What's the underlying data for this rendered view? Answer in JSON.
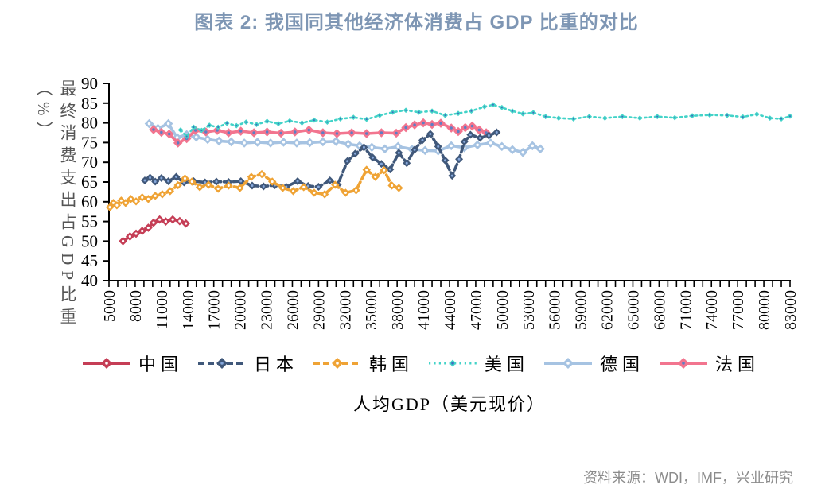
{
  "title": "图表 2: 我国同其他经济体消费占 GDP 比重的对比",
  "source": "资料来源：WDI，IMF，兴业研究",
  "colors": {
    "title": "#7E96B4",
    "source": "#8C8C8C",
    "axis": "#000000",
    "y_title": "#555555"
  },
  "chart_data": {
    "type": "line",
    "title": "图表 2: 我国同其他经济体消费占 GDP 比重的对比",
    "xlabel": "人均GDP（美元现价）",
    "ylabel": "最终消费支出占GDP比重（%）",
    "xlim": [
      5000,
      83000
    ],
    "ylim": [
      40,
      90
    ],
    "grid": false,
    "legend_position": "bottom",
    "x_ticks": [
      5000,
      8000,
      11000,
      14000,
      17000,
      20000,
      23000,
      26000,
      29000,
      32000,
      35000,
      38000,
      41000,
      44000,
      47000,
      50000,
      53000,
      56000,
      59000,
      62000,
      65000,
      68000,
      71000,
      74000,
      77000,
      80000,
      83000
    ],
    "x_minor_step": 1000,
    "y_ticks": [
      40,
      45,
      50,
      55,
      60,
      65,
      70,
      75,
      80,
      85,
      90
    ],
    "series": [
      {
        "id": "china",
        "name": "中国",
        "color": "#C53E56",
        "style": "solid",
        "marker_center": "#FFFFFF",
        "marker_size": 5.4,
        "points": [
          [
            6600,
            50
          ],
          [
            7400,
            51.2
          ],
          [
            8100,
            51.9
          ],
          [
            8800,
            52.6
          ],
          [
            9500,
            53.4
          ],
          [
            10100,
            54.7
          ],
          [
            10800,
            55.5
          ],
          [
            11500,
            55
          ],
          [
            12300,
            55.5
          ],
          [
            13100,
            55.1
          ],
          [
            13800,
            54.5
          ]
        ]
      },
      {
        "id": "japan",
        "name": "日本",
        "color": "#40587A",
        "style": "dashed",
        "marker_center": "#86A8DC",
        "marker_size": 5,
        "points": [
          [
            9100,
            65.4
          ],
          [
            9700,
            66.1
          ],
          [
            10300,
            65.1
          ],
          [
            11000,
            66
          ],
          [
            11800,
            65.2
          ],
          [
            12700,
            66.3
          ],
          [
            13600,
            64.9
          ],
          [
            14700,
            65.2
          ],
          [
            16000,
            64.9
          ],
          [
            17300,
            65.1
          ],
          [
            18700,
            65
          ],
          [
            20100,
            65.2
          ],
          [
            21400,
            64.1
          ],
          [
            22700,
            63.9
          ],
          [
            24000,
            64.2
          ],
          [
            25300,
            63.8
          ],
          [
            26600,
            65.2
          ],
          [
            27800,
            64
          ],
          [
            29000,
            63.8
          ],
          [
            30300,
            65.4
          ],
          [
            31200,
            64.3
          ],
          [
            32300,
            70.3
          ],
          [
            33200,
            72.2
          ],
          [
            34200,
            73.8
          ],
          [
            35200,
            71.2
          ],
          [
            36200,
            69.6
          ],
          [
            37200,
            68.2
          ],
          [
            38200,
            72.4
          ],
          [
            39100,
            69.8
          ],
          [
            40000,
            73.2
          ],
          [
            40900,
            75.6
          ],
          [
            41800,
            77.2
          ],
          [
            42700,
            74
          ],
          [
            43500,
            70.5
          ],
          [
            44300,
            66.6
          ],
          [
            45100,
            70.8
          ],
          [
            45700,
            75.2
          ],
          [
            46400,
            77
          ],
          [
            47500,
            76.2
          ],
          [
            48500,
            76.8
          ],
          [
            49400,
            77.6
          ]
        ]
      },
      {
        "id": "korea",
        "name": "韩国",
        "color": "#EFA335",
        "style": "dashed",
        "marker_center": "#FFFFFF",
        "marker_size": 5.2,
        "points": [
          [
            5100,
            58.6
          ],
          [
            5500,
            59.7
          ],
          [
            5900,
            59.1
          ],
          [
            6400,
            60.3
          ],
          [
            6900,
            59.7
          ],
          [
            7500,
            60.7
          ],
          [
            8100,
            60.1
          ],
          [
            8800,
            61.1
          ],
          [
            9500,
            60.7
          ],
          [
            10300,
            61.5
          ],
          [
            11100,
            61.9
          ],
          [
            12000,
            62.7
          ],
          [
            12900,
            64.2
          ],
          [
            13700,
            65.9
          ],
          [
            14500,
            65.1
          ],
          [
            15400,
            63.7
          ],
          [
            16400,
            64.3
          ],
          [
            17500,
            63.3
          ],
          [
            18700,
            64.1
          ],
          [
            20000,
            63.5
          ],
          [
            21300,
            66.3
          ],
          [
            22500,
            67
          ],
          [
            23700,
            65.1
          ],
          [
            24900,
            63.5
          ],
          [
            26100,
            62.7
          ],
          [
            27300,
            63.7
          ],
          [
            28500,
            62.3
          ],
          [
            29700,
            61.9
          ],
          [
            30900,
            64.3
          ],
          [
            32100,
            62.3
          ],
          [
            33300,
            62.9
          ],
          [
            34500,
            68.1
          ],
          [
            35500,
            66.3
          ],
          [
            36500,
            68
          ],
          [
            37400,
            64.1
          ],
          [
            38200,
            63.5
          ]
        ]
      },
      {
        "id": "usa",
        "name": "美国",
        "color": "#43D3C8",
        "style": "dotted",
        "marker_center": "#3E6EC0",
        "marker_size": 3.4,
        "points": [
          [
            13200,
            78.2
          ],
          [
            13900,
            76.6
          ],
          [
            14700,
            78.9
          ],
          [
            15600,
            78.1
          ],
          [
            16500,
            79.4
          ],
          [
            17500,
            78.9
          ],
          [
            18500,
            79.9
          ],
          [
            19600,
            79.3
          ],
          [
            20700,
            80.2
          ],
          [
            21900,
            79.6
          ],
          [
            23100,
            80.4
          ],
          [
            24400,
            79.8
          ],
          [
            25700,
            80.5
          ],
          [
            27100,
            80
          ],
          [
            28500,
            80.7
          ],
          [
            30000,
            80.2
          ],
          [
            31500,
            81
          ],
          [
            33000,
            81.4
          ],
          [
            34500,
            80.9
          ],
          [
            36000,
            81.9
          ],
          [
            37500,
            82.7
          ],
          [
            39000,
            83.2
          ],
          [
            40500,
            82.7
          ],
          [
            42000,
            83
          ],
          [
            43500,
            81.9
          ],
          [
            45000,
            82.4
          ],
          [
            46500,
            83
          ],
          [
            48000,
            84.1
          ],
          [
            49000,
            84.6
          ],
          [
            50000,
            83.9
          ],
          [
            51200,
            83
          ],
          [
            52400,
            82.3
          ],
          [
            53600,
            82.6
          ],
          [
            55000,
            81.6
          ],
          [
            56500,
            81.2
          ],
          [
            58200,
            81
          ],
          [
            60000,
            81.6
          ],
          [
            61800,
            81.2
          ],
          [
            63800,
            81.6
          ],
          [
            65800,
            81.2
          ],
          [
            67800,
            81.6
          ],
          [
            69800,
            81.3
          ],
          [
            71800,
            81.8
          ],
          [
            73800,
            82
          ],
          [
            75800,
            81.9
          ],
          [
            77600,
            81.5
          ],
          [
            79200,
            82.2
          ],
          [
            80700,
            81.2
          ],
          [
            82000,
            81
          ],
          [
            83000,
            81.7
          ]
        ]
      },
      {
        "id": "germany",
        "name": "德国",
        "color": "#A6C3E2",
        "style": "solid",
        "marker_center": "#FFFFFF",
        "marker_size": 5.8,
        "points": [
          [
            9600,
            79.8
          ],
          [
            10600,
            78.6
          ],
          [
            11800,
            79.8
          ],
          [
            12800,
            76.3
          ],
          [
            13900,
            77
          ],
          [
            15000,
            76.4
          ],
          [
            16300,
            75.8
          ],
          [
            17600,
            75.4
          ],
          [
            19000,
            75.2
          ],
          [
            20500,
            74.9
          ],
          [
            22000,
            75.1
          ],
          [
            23500,
            74.9
          ],
          [
            25000,
            75.1
          ],
          [
            26500,
            74.9
          ],
          [
            28000,
            75
          ],
          [
            29500,
            75.2
          ],
          [
            31000,
            75.3
          ],
          [
            32400,
            74.6
          ],
          [
            33700,
            74.2
          ],
          [
            35100,
            73.8
          ],
          [
            36600,
            73.4
          ],
          [
            38100,
            74
          ],
          [
            39700,
            73.3
          ],
          [
            41200,
            73
          ],
          [
            42700,
            72.9
          ],
          [
            44200,
            74.2
          ],
          [
            45700,
            73.7
          ],
          [
            47200,
            74.4
          ],
          [
            48700,
            74.9
          ],
          [
            50000,
            74
          ],
          [
            51200,
            73.2
          ],
          [
            52400,
            72.5
          ],
          [
            53500,
            74.2
          ],
          [
            54400,
            73.4
          ]
        ]
      },
      {
        "id": "france",
        "name": "法国",
        "color": "#F2758F",
        "style": "solid",
        "marker_center": "#5B7FC5",
        "marker_size": 5.8,
        "points": [
          [
            10100,
            78.3
          ],
          [
            11000,
            77.6
          ],
          [
            11900,
            77.2
          ],
          [
            12900,
            74.9
          ],
          [
            13900,
            76
          ],
          [
            14900,
            78.1
          ],
          [
            16100,
            77.7
          ],
          [
            17400,
            78.1
          ],
          [
            18700,
            77.5
          ],
          [
            20100,
            77.9
          ],
          [
            21600,
            77.5
          ],
          [
            23100,
            77.7
          ],
          [
            24700,
            77.4
          ],
          [
            26300,
            77.7
          ],
          [
            27900,
            78.2
          ],
          [
            29500,
            77.5
          ],
          [
            31100,
            77.3
          ],
          [
            32800,
            77.5
          ],
          [
            34500,
            77.3
          ],
          [
            36200,
            77.5
          ],
          [
            37900,
            77.4
          ],
          [
            39000,
            78.8
          ],
          [
            40000,
            79.5
          ],
          [
            41000,
            80
          ],
          [
            42000,
            79.6
          ],
          [
            43000,
            79.9
          ],
          [
            44200,
            78.7
          ],
          [
            45000,
            77.8
          ],
          [
            45800,
            78.8
          ],
          [
            46600,
            79.2
          ],
          [
            47400,
            78.2
          ],
          [
            48200,
            77.5
          ]
        ]
      }
    ]
  }
}
